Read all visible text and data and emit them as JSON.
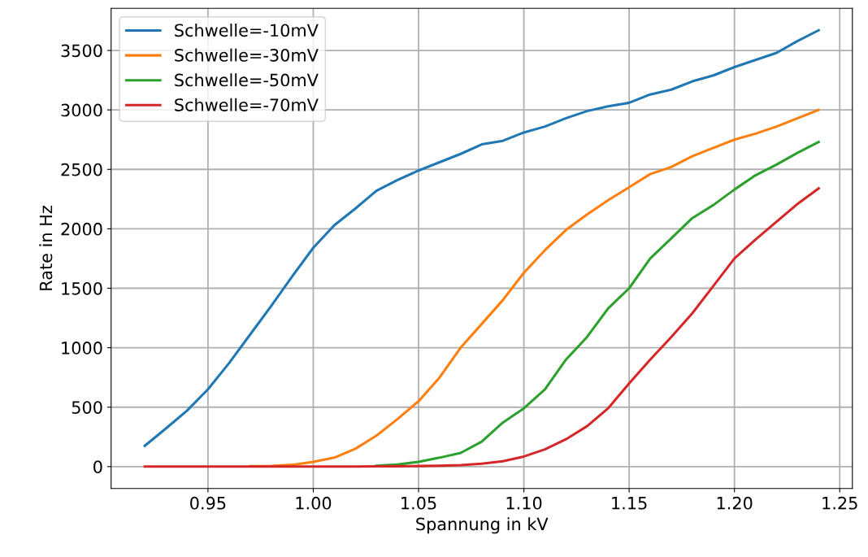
{
  "chart_data": {
    "type": "line",
    "xlabel": "Spannung in kV",
    "ylabel": "Rate in Hz",
    "x": [
      0.92,
      0.93,
      0.94,
      0.95,
      0.96,
      0.97,
      0.98,
      0.99,
      1.0,
      1.01,
      1.02,
      1.03,
      1.04,
      1.05,
      1.06,
      1.07,
      1.08,
      1.09,
      1.1,
      1.11,
      1.12,
      1.13,
      1.14,
      1.15,
      1.16,
      1.17,
      1.18,
      1.19,
      1.2,
      1.21,
      1.22,
      1.23,
      1.24
    ],
    "series": [
      {
        "name": "Schwelle=-10mV",
        "color": "#1f77b4",
        "values": [
          175,
          320,
          470,
          650,
          870,
          1110,
          1350,
          1600,
          1840,
          2030,
          2170,
          2320,
          2410,
          2490,
          2560,
          2630,
          2710,
          2740,
          2810,
          2860,
          2930,
          2990,
          3030,
          3060,
          3130,
          3170,
          3240,
          3290,
          3360,
          3420,
          3480,
          3580,
          3670
        ]
      },
      {
        "name": "Schwelle=-30mV",
        "color": "#ff7f0e",
        "values": [
          null,
          null,
          null,
          null,
          null,
          3,
          5,
          15,
          40,
          75,
          150,
          260,
          400,
          550,
          750,
          1000,
          1200,
          1400,
          1630,
          1820,
          1990,
          2120,
          2240,
          2350,
          2460,
          2520,
          2610,
          2680,
          2750,
          2800,
          2860,
          2930,
          3000
        ]
      },
      {
        "name": "Schwelle=-50mV",
        "color": "#2ca02c",
        "values": [
          null,
          null,
          null,
          null,
          null,
          null,
          null,
          null,
          null,
          null,
          null,
          8,
          18,
          40,
          75,
          115,
          210,
          370,
          490,
          650,
          900,
          1090,
          1330,
          1500,
          1750,
          1920,
          2090,
          2200,
          2330,
          2450,
          2540,
          2640,
          2730
        ]
      },
      {
        "name": "Schwelle=-70mV",
        "color": "#d62728",
        "values": [
          0,
          0,
          0,
          0,
          0,
          0,
          0,
          0,
          0,
          0,
          1,
          2,
          3,
          5,
          8,
          13,
          25,
          45,
          85,
          145,
          230,
          340,
          490,
          700,
          900,
          1090,
          1290,
          1520,
          1750,
          1910,
          2060,
          2210,
          2340
        ]
      }
    ],
    "xlim": [
      0.904,
      1.256
    ],
    "ylim": [
      -184,
      3854
    ],
    "xticks": [
      {
        "value": 0.95,
        "label": "0.95"
      },
      {
        "value": 1.0,
        "label": "1.00"
      },
      {
        "value": 1.05,
        "label": "1.05"
      },
      {
        "value": 1.1,
        "label": "1.10"
      },
      {
        "value": 1.15,
        "label": "1.15"
      },
      {
        "value": 1.2,
        "label": "1.20"
      },
      {
        "value": 1.25,
        "label": "1.25"
      }
    ],
    "yticks": [
      0,
      500,
      1000,
      1500,
      2000,
      2500,
      3000,
      3500
    ],
    "grid": true,
    "legend": "top left",
    "marker": "none",
    "line_style": "solid"
  }
}
